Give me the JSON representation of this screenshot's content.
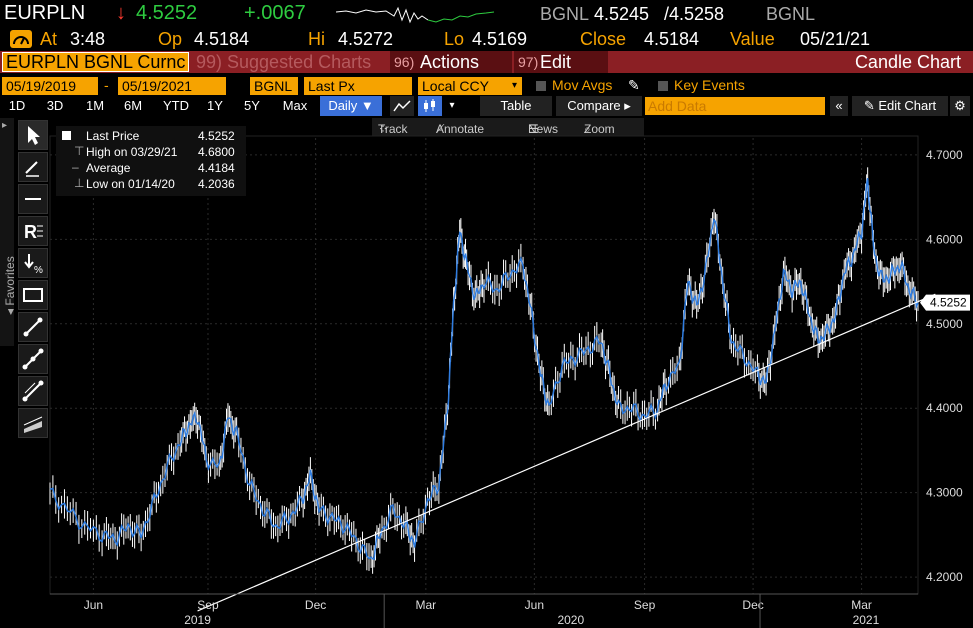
{
  "header": {
    "ticker": "EURPLN",
    "arrow": "↓",
    "last": "4.5252",
    "change": "+.0067",
    "source_label": "BGNL",
    "bid": "4.5245",
    "ask": "/4.5258",
    "source_label2": "BGNL"
  },
  "quote": {
    "at_label": "At",
    "time": "3:48",
    "op_label": "Op",
    "open": "4.5184",
    "hi_label": "Hi",
    "high": "4.5272",
    "lo_label": "Lo",
    "low": "4.5169",
    "close_label": "Close",
    "close": "4.5184",
    "value_label": "Value",
    "value_date": "05/21/21"
  },
  "titlebar": {
    "security": "EURPLN BGNL Curnc",
    "suggested": "99) Suggested Charts",
    "actions_num": "96)",
    "actions": "Actions",
    "edit_num": "97)",
    "edit": "Edit",
    "chart_type": "Candle Chart"
  },
  "params": {
    "start_date": "05/19/2019",
    "dash": "-",
    "end_date": "05/19/2021",
    "source": "BGNL",
    "field": "Last Px",
    "currency": "Local CCY",
    "mov_avgs": "Mov Avgs",
    "key_events": "Key Events"
  },
  "periods": {
    "items": [
      "1D",
      "3D",
      "1M",
      "6M",
      "YTD",
      "1Y",
      "5Y",
      "Max"
    ],
    "frequency": "Daily ▼",
    "table": "Table",
    "compare": "Compare ▸",
    "add_data_placeholder": "Add Data",
    "edit_chart": "Edit Chart"
  },
  "chart_tools": {
    "track": "Track",
    "annotate": "Annotate",
    "news": "News",
    "zoom": "Zoom"
  },
  "sidebar": {
    "favorites": "Favorites"
  },
  "legend": {
    "last_label": "Last Price",
    "last_value": "4.5252",
    "high_label": "High on 03/29/21",
    "high_value": "4.6800",
    "avg_label": "Average",
    "avg_value": "4.4184",
    "low_label": "Low on 01/14/20",
    "low_value": "4.2036"
  },
  "colors": {
    "accent_orange": "#f6a300",
    "price_line": "#2f7de1",
    "candle": "#ffffff",
    "title_bar": "#8b1f24",
    "active_tab": "#3a6fd8"
  },
  "chart_data": {
    "type": "line",
    "title": "",
    "xlabel": "",
    "ylabel": "",
    "ylim": [
      4.18,
      4.72
    ],
    "yticks": [
      4.2,
      4.3,
      4.4,
      4.5,
      4.6,
      4.7
    ],
    "ytick_labels": [
      "4.2000",
      "4.3000",
      "4.4000",
      "4.5000",
      "4.6000",
      "4.7000"
    ],
    "xticks": [
      {
        "label": "Jun",
        "t": 0.05
      },
      {
        "label": "Sep",
        "t": 0.182
      },
      {
        "label": "Dec",
        "t": 0.306
      },
      {
        "label": "Mar",
        "t": 0.433
      },
      {
        "label": "Jun",
        "t": 0.558
      },
      {
        "label": "Sep",
        "t": 0.685
      },
      {
        "label": "Dec",
        "t": 0.81
      },
      {
        "label": "Mar",
        "t": 0.935
      }
    ],
    "year_labels": [
      {
        "label": "2019",
        "t": 0.17
      },
      {
        "label": "2020",
        "t": 0.6
      },
      {
        "label": "2021",
        "t": 0.94
      }
    ],
    "last_value_label": "4.5252",
    "series": [
      {
        "values": [
          {
            "t": 0.0,
            "v": 4.3
          },
          {
            "t": 0.02,
            "v": 4.28
          },
          {
            "t": 0.04,
            "v": 4.26
          },
          {
            "t": 0.06,
            "v": 4.25
          },
          {
            "t": 0.075,
            "v": 4.245
          },
          {
            "t": 0.09,
            "v": 4.26
          },
          {
            "t": 0.105,
            "v": 4.25
          },
          {
            "t": 0.12,
            "v": 4.29
          },
          {
            "t": 0.135,
            "v": 4.33
          },
          {
            "t": 0.15,
            "v": 4.36
          },
          {
            "t": 0.16,
            "v": 4.38
          },
          {
            "t": 0.17,
            "v": 4.39
          },
          {
            "t": 0.18,
            "v": 4.34
          },
          {
            "t": 0.195,
            "v": 4.33
          },
          {
            "t": 0.205,
            "v": 4.39
          },
          {
            "t": 0.215,
            "v": 4.37
          },
          {
            "t": 0.23,
            "v": 4.31
          },
          {
            "t": 0.245,
            "v": 4.28
          },
          {
            "t": 0.26,
            "v": 4.26
          },
          {
            "t": 0.275,
            "v": 4.27
          },
          {
            "t": 0.29,
            "v": 4.29
          },
          {
            "t": 0.3,
            "v": 4.32
          },
          {
            "t": 0.31,
            "v": 4.28
          },
          {
            "t": 0.325,
            "v": 4.27
          },
          {
            "t": 0.34,
            "v": 4.26
          },
          {
            "t": 0.355,
            "v": 4.24
          },
          {
            "t": 0.37,
            "v": 4.22
          },
          {
            "t": 0.38,
            "v": 4.25
          },
          {
            "t": 0.395,
            "v": 4.28
          },
          {
            "t": 0.41,
            "v": 4.26
          },
          {
            "t": 0.42,
            "v": 4.24
          },
          {
            "t": 0.435,
            "v": 4.29
          },
          {
            "t": 0.448,
            "v": 4.31
          },
          {
            "t": 0.458,
            "v": 4.4
          },
          {
            "t": 0.465,
            "v": 4.52
          },
          {
            "t": 0.472,
            "v": 4.61
          },
          {
            "t": 0.48,
            "v": 4.57
          },
          {
            "t": 0.49,
            "v": 4.53
          },
          {
            "t": 0.5,
            "v": 4.55
          },
          {
            "t": 0.515,
            "v": 4.54
          },
          {
            "t": 0.53,
            "v": 4.56
          },
          {
            "t": 0.545,
            "v": 4.57
          },
          {
            "t": 0.555,
            "v": 4.51
          },
          {
            "t": 0.565,
            "v": 4.44
          },
          {
            "t": 0.575,
            "v": 4.4
          },
          {
            "t": 0.59,
            "v": 4.45
          },
          {
            "t": 0.605,
            "v": 4.46
          },
          {
            "t": 0.62,
            "v": 4.47
          },
          {
            "t": 0.635,
            "v": 4.48
          },
          {
            "t": 0.645,
            "v": 4.44
          },
          {
            "t": 0.655,
            "v": 4.4
          },
          {
            "t": 0.67,
            "v": 4.4
          },
          {
            "t": 0.685,
            "v": 4.39
          },
          {
            "t": 0.7,
            "v": 4.4
          },
          {
            "t": 0.71,
            "v": 4.43
          },
          {
            "t": 0.725,
            "v": 4.45
          },
          {
            "t": 0.735,
            "v": 4.55
          },
          {
            "t": 0.745,
            "v": 4.52
          },
          {
            "t": 0.755,
            "v": 4.56
          },
          {
            "t": 0.765,
            "v": 4.63
          },
          {
            "t": 0.775,
            "v": 4.55
          },
          {
            "t": 0.785,
            "v": 4.48
          },
          {
            "t": 0.8,
            "v": 4.46
          },
          {
            "t": 0.815,
            "v": 4.44
          },
          {
            "t": 0.825,
            "v": 4.43
          },
          {
            "t": 0.835,
            "v": 4.49
          },
          {
            "t": 0.845,
            "v": 4.56
          },
          {
            "t": 0.855,
            "v": 4.54
          },
          {
            "t": 0.865,
            "v": 4.55
          },
          {
            "t": 0.875,
            "v": 4.51
          },
          {
            "t": 0.885,
            "v": 4.48
          },
          {
            "t": 0.895,
            "v": 4.49
          },
          {
            "t": 0.905,
            "v": 4.51
          },
          {
            "t": 0.915,
            "v": 4.56
          },
          {
            "t": 0.925,
            "v": 4.58
          },
          {
            "t": 0.935,
            "v": 4.61
          },
          {
            "t": 0.942,
            "v": 4.67
          },
          {
            "t": 0.95,
            "v": 4.58
          },
          {
            "t": 0.96,
            "v": 4.55
          },
          {
            "t": 0.97,
            "v": 4.56
          },
          {
            "t": 0.98,
            "v": 4.57
          },
          {
            "t": 0.99,
            "v": 4.54
          },
          {
            "t": 1.0,
            "v": 4.525
          }
        ]
      }
    ],
    "trendline": [
      {
        "t": 0.17,
        "v": 4.16
      },
      {
        "t": 1.02,
        "v": 4.535
      }
    ]
  }
}
